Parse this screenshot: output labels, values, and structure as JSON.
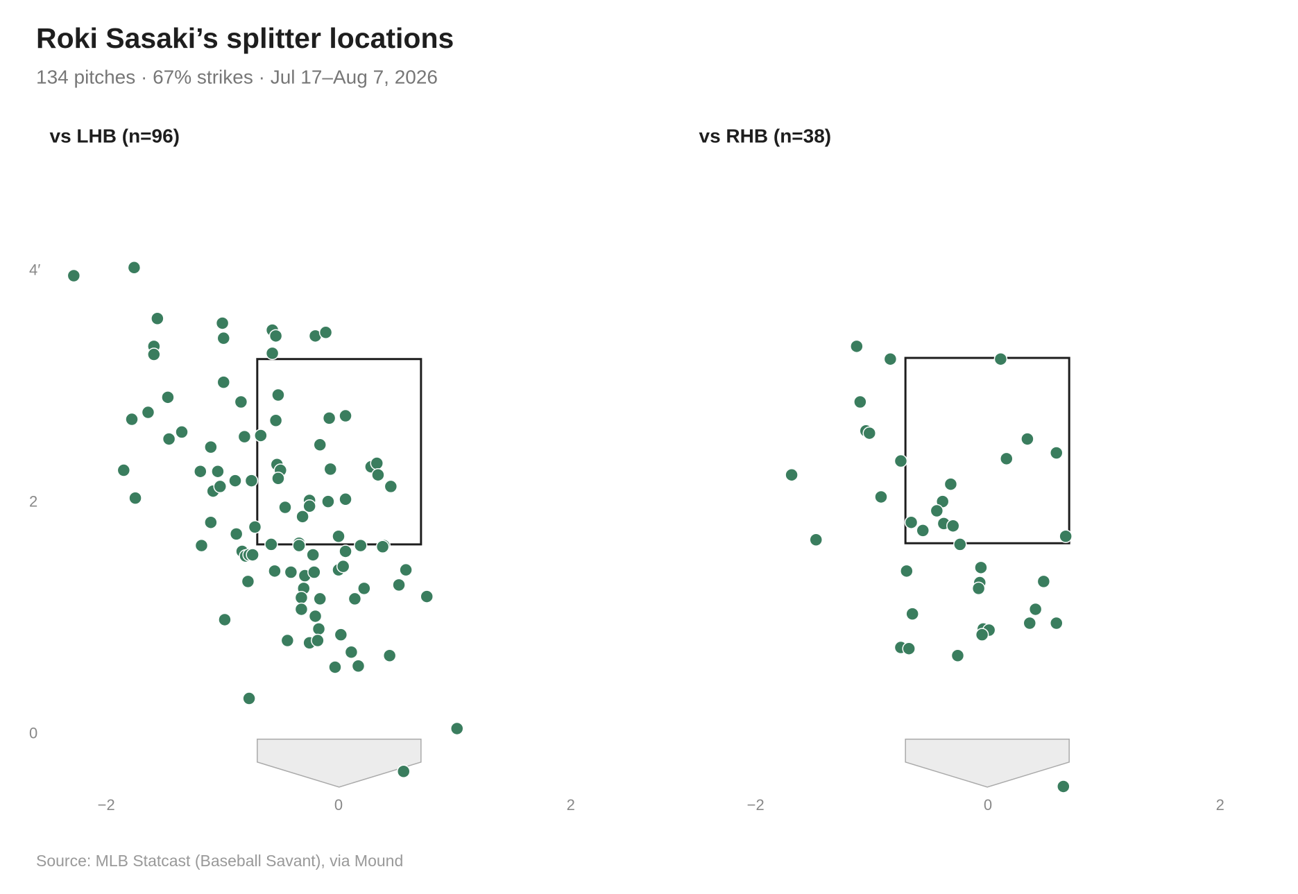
{
  "title": "Roki Sasaki’s splitter locations",
  "subtitle": "134 pitches · 67% strikes · Jul 17–Aug 7, 2026",
  "source": "Source: MLB Statcast (Baseball Savant), via Mound",
  "chart_data": [
    {
      "type": "scatter",
      "title": "vs LHB (n=96)",
      "color": "#3a7d5e",
      "xlim": [
        -2.5,
        2.5
      ],
      "ylim": [
        -0.6,
        4.4
      ],
      "xticks": [
        {
          "value": -2,
          "label": "−2"
        },
        0,
        2
      ],
      "yticks": [
        0,
        2,
        {
          "value": 4,
          "label": "4′"
        }
      ],
      "strike_zone": {
        "x": [
          -0.7,
          0.71
        ],
        "y": [
          1.64,
          3.24
        ]
      },
      "x": [
        -2.28,
        -1.76,
        -1.56,
        -1.59,
        -1.59,
        -1.0,
        -0.99,
        -0.57,
        -0.54,
        -0.57,
        -0.2,
        -0.11,
        -0.99,
        -1.47,
        -0.84,
        -0.52,
        -1.78,
        -1.64,
        -0.54,
        -0.08,
        0.06,
        -1.46,
        -1.35,
        -0.81,
        -0.67,
        -1.1,
        -0.16,
        -1.85,
        -1.19,
        -1.04,
        -0.53,
        -0.5,
        -0.52,
        -0.07,
        0.28,
        0.33,
        0.34,
        0.45,
        -1.75,
        -1.08,
        -1.02,
        -0.89,
        -0.75,
        -0.25,
        -0.25,
        -0.46,
        -0.09,
        0.06,
        -0.31,
        -1.1,
        -0.88,
        -0.72,
        0.0,
        -1.18,
        -0.58,
        -0.34,
        -0.34,
        0.19,
        0.39,
        -0.83,
        -0.8,
        -0.77,
        -0.74,
        -0.22,
        0.06,
        -0.55,
        -0.41,
        -0.29,
        -0.21,
        0.0,
        0.04,
        0.58,
        -0.78,
        0.52,
        -0.3,
        0.22,
        -0.32,
        -0.16,
        0.14,
        0.76,
        -0.32,
        -0.2,
        -0.98,
        -0.17,
        0.02,
        -0.44,
        -0.25,
        -0.18,
        0.11,
        0.44,
        -0.03,
        0.17,
        -0.77,
        1.02,
        0.56,
        0.38
      ],
      "y": [
        3.96,
        4.03,
        3.59,
        3.35,
        3.28,
        3.55,
        3.42,
        3.49,
        3.44,
        3.29,
        3.44,
        3.47,
        3.04,
        2.91,
        2.87,
        2.93,
        2.72,
        2.78,
        2.71,
        2.73,
        2.75,
        2.55,
        2.61,
        2.57,
        2.58,
        2.48,
        2.5,
        2.28,
        2.27,
        2.27,
        2.33,
        2.28,
        2.21,
        2.29,
        2.31,
        2.34,
        2.24,
        2.14,
        2.04,
        2.1,
        2.14,
        2.19,
        2.19,
        2.02,
        1.97,
        1.96,
        2.01,
        2.03,
        1.88,
        1.83,
        1.73,
        1.79,
        1.71,
        1.63,
        1.64,
        1.65,
        1.63,
        1.63,
        1.63,
        1.58,
        1.54,
        1.55,
        1.55,
        1.55,
        1.58,
        1.41,
        1.4,
        1.37,
        1.4,
        1.42,
        1.45,
        1.42,
        1.32,
        1.29,
        1.26,
        1.26,
        1.18,
        1.17,
        1.17,
        1.19,
        1.08,
        1.02,
        0.99,
        0.91,
        0.86,
        0.81,
        0.79,
        0.81,
        0.71,
        0.68,
        0.58,
        0.59,
        0.31,
        0.05,
        -0.32,
        1.62
      ]
    },
    {
      "type": "scatter",
      "title": "vs RHB (n=38)",
      "color": "#3a7d5e",
      "xlim": [
        -2.5,
        2.5
      ],
      "ylim": [
        -0.6,
        4.4
      ],
      "xticks": [
        {
          "value": -2,
          "label": "−2"
        },
        0,
        2
      ],
      "strike_zone": {
        "x": [
          -0.71,
          0.7
        ],
        "y": [
          1.65,
          3.25
        ]
      },
      "x": [
        -1.13,
        -0.84,
        0.11,
        -1.1,
        -1.05,
        -1.02,
        0.34,
        0.59,
        -0.75,
        0.16,
        -1.69,
        -0.32,
        -0.92,
        -0.39,
        -0.44,
        -0.66,
        -0.38,
        -0.3,
        -0.56,
        -1.48,
        0.67,
        -0.24,
        -0.7,
        -0.06,
        -0.07,
        -0.08,
        0.48,
        -0.65,
        0.41,
        0.36,
        0.59,
        -0.04,
        0.01,
        -0.05,
        -0.75,
        -0.68,
        -0.26,
        0.65
      ],
      "y": [
        3.35,
        3.24,
        3.24,
        2.87,
        2.62,
        2.6,
        2.55,
        2.43,
        2.36,
        2.38,
        2.24,
        2.16,
        2.05,
        2.01,
        1.93,
        1.83,
        1.82,
        1.8,
        1.76,
        1.68,
        1.71,
        1.64,
        1.41,
        1.44,
        1.31,
        1.26,
        1.32,
        1.04,
        1.08,
        0.96,
        0.96,
        0.91,
        0.9,
        0.86,
        0.75,
        0.74,
        0.68,
        -0.45
      ]
    }
  ]
}
